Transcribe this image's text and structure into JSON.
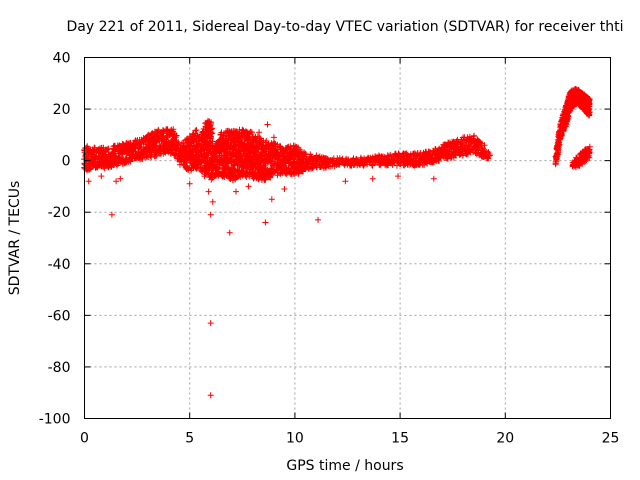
{
  "chart_data": {
    "type": "scatter",
    "title": "Day 221 of 2011, Sidereal Day-to-day VTEC variation (SDTVAR) for receiver thti",
    "xlabel": "GPS time / hours",
    "ylabel": "SDTVAR / TECUs",
    "xlim": [
      0,
      25
    ],
    "ylim": [
      -100,
      40
    ],
    "xticks": [
      0,
      5,
      10,
      15,
      20,
      25
    ],
    "yticks": [
      -100,
      -80,
      -60,
      -40,
      -20,
      0,
      20,
      40
    ],
    "grid": true,
    "marker": "+",
    "series": [
      {
        "name": "SDTVAR",
        "color": "#ff0000",
        "band": [
          [
            0.0,
            -4,
            6
          ],
          [
            0.5,
            -3,
            5
          ],
          [
            1.0,
            -3,
            5
          ],
          [
            1.5,
            -2,
            6
          ],
          [
            2.0,
            -1,
            7
          ],
          [
            2.5,
            0,
            8
          ],
          [
            3.0,
            1,
            10
          ],
          [
            3.5,
            2,
            12
          ],
          [
            4.0,
            3,
            13
          ],
          [
            4.3,
            2,
            12
          ],
          [
            4.5,
            -2,
            6
          ],
          [
            4.8,
            -3,
            8
          ],
          [
            5.0,
            -4,
            10
          ],
          [
            5.3,
            -3,
            12
          ],
          [
            5.5,
            -4,
            9
          ],
          [
            5.8,
            -6,
            16
          ],
          [
            6.0,
            -8,
            15
          ],
          [
            6.2,
            -6,
            6
          ],
          [
            6.5,
            -6,
            11
          ],
          [
            7.0,
            -8,
            12
          ],
          [
            7.5,
            -6,
            12
          ],
          [
            8.0,
            -7,
            11
          ],
          [
            8.5,
            -8,
            8
          ],
          [
            9.0,
            -6,
            7
          ],
          [
            9.5,
            -5,
            5
          ],
          [
            10.0,
            -6,
            6
          ],
          [
            10.5,
            -4,
            3
          ],
          [
            11.0,
            -3,
            2
          ],
          [
            11.5,
            -3,
            1
          ],
          [
            12.0,
            -2,
            1
          ],
          [
            13.0,
            -2,
            1
          ],
          [
            14.0,
            -2,
            2
          ],
          [
            15.0,
            -2,
            3
          ],
          [
            16.0,
            -2,
            3
          ],
          [
            16.5,
            -1,
            4
          ],
          [
            17.0,
            0,
            6
          ],
          [
            17.5,
            1,
            8
          ],
          [
            18.0,
            2,
            9
          ],
          [
            18.5,
            3,
            10
          ],
          [
            19.0,
            1,
            6
          ],
          [
            19.3,
            0,
            2
          ],
          [
            22.4,
            -2,
            3
          ],
          [
            22.6,
            8,
            14
          ],
          [
            22.9,
            14,
            22
          ],
          [
            23.1,
            20,
            27
          ],
          [
            23.4,
            22,
            28
          ],
          [
            23.7,
            20,
            26
          ],
          [
            24.0,
            17,
            24
          ],
          [
            23.2,
            -3,
            0
          ],
          [
            23.6,
            -2,
            3
          ],
          [
            24.0,
            1,
            6
          ]
        ],
        "outliers": [
          [
            0.2,
            -8
          ],
          [
            0.8,
            -6
          ],
          [
            1.3,
            -21
          ],
          [
            1.5,
            -8
          ],
          [
            1.7,
            -7
          ],
          [
            5.0,
            -9
          ],
          [
            5.7,
            -6
          ],
          [
            5.9,
            -12
          ],
          [
            6.0,
            -21
          ],
          [
            6.1,
            -16
          ],
          [
            6.0,
            -63
          ],
          [
            6.0,
            -91
          ],
          [
            6.9,
            -28
          ],
          [
            7.2,
            -12
          ],
          [
            7.8,
            -10
          ],
          [
            8.6,
            -24
          ],
          [
            8.9,
            -15
          ],
          [
            8.7,
            14
          ],
          [
            9.5,
            -11
          ],
          [
            11.1,
            -23
          ],
          [
            12.4,
            -8
          ],
          [
            13.7,
            -7
          ],
          [
            14.9,
            -6
          ],
          [
            16.6,
            -7
          ],
          [
            18.6,
            3
          ],
          [
            9.0,
            9
          ],
          [
            7.5,
            12
          ],
          [
            8.3,
            11
          ]
        ]
      }
    ]
  }
}
